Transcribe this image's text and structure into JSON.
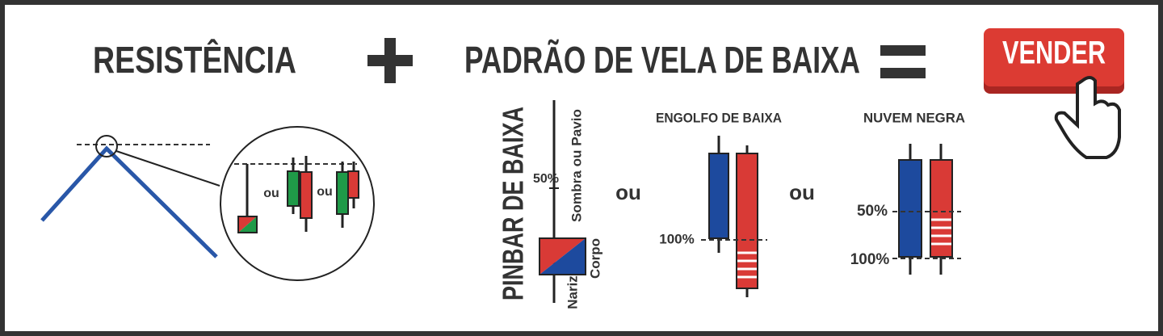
{
  "header": {
    "left": "RESISTÊNCIA",
    "right": "PADRÃO DE VELA DE BAIXA"
  },
  "button": {
    "label": "VENDER"
  },
  "zoom": {
    "separators": [
      "ou",
      "ou"
    ]
  },
  "pinbar": {
    "title": "PINBAR DE BAIXA",
    "level": "50%",
    "wick": "Sombra ou Pavio",
    "body": "Corpo",
    "nose": "Nariz"
  },
  "separators": [
    "ou",
    "ou"
  ],
  "engulfing": {
    "title": "ENGOLFO DE BAIXA",
    "level": "100%"
  },
  "dark_cloud": {
    "title": "NUVEM NEGRA",
    "levels": [
      "50%",
      "100%"
    ]
  }
}
